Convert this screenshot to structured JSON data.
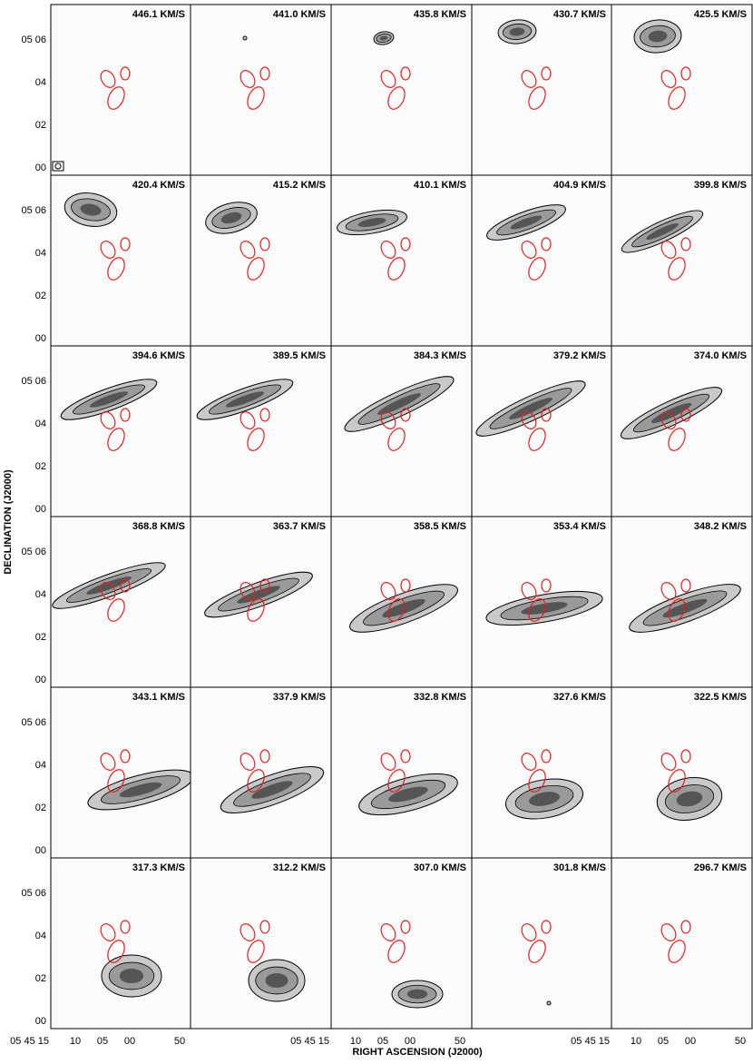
{
  "figure": {
    "panels": [
      "446.1 KM/S",
      "441.0 KM/S",
      "435.8 KM/S",
      "430.7 KM/S",
      "425.5 KM/S",
      "420.4 KM/S",
      "415.2 KM/S",
      "410.1 KM/S",
      "404.9 KM/S",
      "399.8 KM/S",
      "394.6 KM/S",
      "389.5 KM/S",
      "384.3 KM/S",
      "379.2 KM/S",
      "374.0 KM/S",
      "368.8 KM/S",
      "363.7 KM/S",
      "358.5 KM/S",
      "353.4 KM/S",
      "348.2 KM/S",
      "343.1 KM/S",
      "337.9 KM/S",
      "332.8 KM/S",
      "327.6 KM/S",
      "322.5 KM/S",
      "317.3 KM/S",
      "312.2 KM/S",
      "307.0 KM/S",
      "301.8 KM/S",
      "296.7 KM/S"
    ],
    "y_ticks": [
      "05 06",
      "04",
      "02",
      "00"
    ],
    "x_ticks": [
      "05 45 15",
      "10",
      "05",
      "00",
      "50"
    ],
    "y_label": "DECLINATION (J2000)",
    "x_label": "RIGHT ASCENSION (J2000)"
  }
}
